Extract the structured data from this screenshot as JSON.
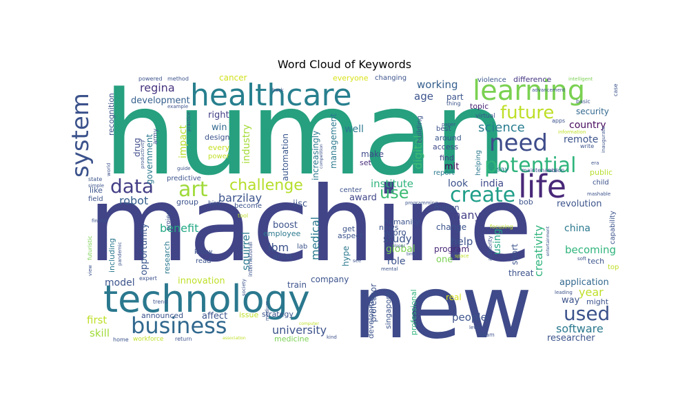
{
  "chart_data": {
    "type": "wordcloud",
    "title": "Word Cloud of Keywords",
    "background": "#ffffff",
    "colormap": "viridis",
    "words": [
      {
        "text": "human",
        "color": "#26a07f"
      },
      {
        "text": "machine",
        "color": "#414487"
      },
      {
        "text": "new",
        "color": "#3e4a89"
      },
      {
        "text": "healthcare",
        "color": "#277f8e"
      },
      {
        "text": "technology",
        "color": "#2a788e"
      },
      {
        "text": "learning",
        "color": "#7ad151"
      },
      {
        "text": "system",
        "color": "#3b528b"
      },
      {
        "text": "need",
        "color": "#3e4c8a"
      },
      {
        "text": "life",
        "color": "#482878"
      },
      {
        "text": "potential",
        "color": "#2fb47c"
      },
      {
        "text": "business",
        "color": "#31688e"
      },
      {
        "text": "create",
        "color": "#1f9e89"
      },
      {
        "text": "future",
        "color": "#bddf26"
      },
      {
        "text": "used",
        "color": "#3b528b"
      },
      {
        "text": "data",
        "color": "#433e85"
      },
      {
        "text": "art",
        "color": "#a0da39"
      },
      {
        "text": "challenge",
        "color": "#b5de2b"
      },
      {
        "text": "use",
        "color": "#3dbc74"
      },
      {
        "text": "science",
        "color": "#287c8e"
      },
      {
        "text": "robot",
        "color": "#355f8d"
      },
      {
        "text": "regina",
        "color": "#46327e"
      },
      {
        "text": "development",
        "color": "#355f8d"
      },
      {
        "text": "impact",
        "color": "#b5de2b"
      },
      {
        "text": "industry",
        "color": "#a5db36"
      },
      {
        "text": "drug",
        "color": "#3e4a89"
      },
      {
        "text": "government",
        "color": "#2a788e"
      },
      {
        "text": "right",
        "color": "#424086"
      },
      {
        "text": "win",
        "color": "#31688e"
      },
      {
        "text": "design",
        "color": "#3b528b"
      },
      {
        "text": "every",
        "color": "#c8e020"
      },
      {
        "text": "power",
        "color": "#c0df25"
      },
      {
        "text": "cancer",
        "color": "#d0e11c"
      },
      {
        "text": "working",
        "color": "#355f8d"
      },
      {
        "text": "age",
        "color": "#3b528b"
      },
      {
        "text": "part",
        "color": "#3b528b"
      },
      {
        "text": "topic",
        "color": "#482173"
      },
      {
        "text": "difference",
        "color": "#453581"
      },
      {
        "text": "violence",
        "color": "#39568c"
      },
      {
        "text": "security",
        "color": "#31688e"
      },
      {
        "text": "country",
        "color": "#46085c"
      },
      {
        "text": "remote",
        "color": "#3b528b"
      },
      {
        "text": "well",
        "color": "#2a788e"
      },
      {
        "text": "management",
        "color": "#2a788e"
      },
      {
        "text": "increasingly",
        "color": "#2a788e"
      },
      {
        "text": "automation",
        "color": "#39568c"
      },
      {
        "text": "make",
        "color": "#3e4989"
      },
      {
        "text": "set",
        "color": "#472d7b"
      },
      {
        "text": "digital",
        "color": "#3dbc74"
      },
      {
        "text": "mit",
        "color": "#440154"
      },
      {
        "text": "find",
        "color": "#433e85"
      },
      {
        "text": "access",
        "color": "#3e4989"
      },
      {
        "text": "around",
        "color": "#39568c"
      },
      {
        "text": "best",
        "color": "#3b528b"
      },
      {
        "text": "helping",
        "color": "#2a788e"
      },
      {
        "text": "building",
        "color": "#3b528b"
      },
      {
        "text": "india",
        "color": "#3e4989"
      },
      {
        "text": "look",
        "color": "#3b528b"
      },
      {
        "text": "say",
        "color": "#2a788e"
      },
      {
        "text": "public",
        "color": "#b5de2b"
      },
      {
        "text": "child",
        "color": "#3b528b"
      },
      {
        "text": "revolution",
        "color": "#3b528b"
      },
      {
        "text": "capability",
        "color": "#3b528b"
      },
      {
        "text": "institute",
        "color": "#2fb47c"
      },
      {
        "text": "barzilay",
        "color": "#3b528b"
      },
      {
        "text": "award",
        "color": "#404688"
      },
      {
        "text": "iisc",
        "color": "#3b528b"
      },
      {
        "text": "squirrel",
        "color": "#2a788e"
      },
      {
        "text": "medical",
        "color": "#2a788e"
      },
      {
        "text": "ibm",
        "color": "#3b528b"
      },
      {
        "text": "study",
        "color": "#3b528b"
      },
      {
        "text": "help",
        "color": "#3b528b"
      },
      {
        "text": "many",
        "color": "#433e85"
      },
      {
        "text": "change",
        "color": "#3b528b"
      },
      {
        "text": "program",
        "color": "#482878"
      },
      {
        "text": "global",
        "color": "#7ad151"
      },
      {
        "text": "using",
        "color": "#22a884"
      },
      {
        "text": "creativity",
        "color": "#2fb47c"
      },
      {
        "text": "china",
        "color": "#2a788e"
      },
      {
        "text": "becoming",
        "color": "#2fb47c"
      },
      {
        "text": "tech",
        "color": "#3b528b"
      },
      {
        "text": "benefit",
        "color": "#22a884"
      },
      {
        "text": "opportunity",
        "color": "#39568c"
      },
      {
        "text": "including",
        "color": "#2a788e"
      },
      {
        "text": "research",
        "color": "#2a788e"
      },
      {
        "text": "employee",
        "color": "#2a788e"
      },
      {
        "text": "boost",
        "color": "#3b528b"
      },
      {
        "text": "artist",
        "color": "#3b528b"
      },
      {
        "text": "humanity",
        "color": "#3b528b"
      },
      {
        "text": "wipro",
        "color": "#3b528b"
      },
      {
        "text": "role",
        "color": "#3b528b"
      },
      {
        "text": "one",
        "color": "#7ad151"
      },
      {
        "text": "short",
        "color": "#3b528b"
      },
      {
        "text": "model",
        "color": "#3b528b"
      },
      {
        "text": "innovation",
        "color": "#bddf26"
      },
      {
        "text": "company",
        "color": "#3b528b"
      },
      {
        "text": "application",
        "color": "#31688e"
      },
      {
        "text": "year",
        "color": "#bddf26"
      },
      {
        "text": "way",
        "color": "#3b528b"
      },
      {
        "text": "might",
        "color": "#3b528b"
      },
      {
        "text": "software",
        "color": "#2a788e"
      },
      {
        "text": "researcher",
        "color": "#3b528b"
      },
      {
        "text": "first",
        "color": "#bddf26"
      },
      {
        "text": "skill",
        "color": "#a0da39"
      },
      {
        "text": "announced",
        "color": "#3b528b"
      },
      {
        "text": "affect",
        "color": "#3b528b"
      },
      {
        "text": "university",
        "color": "#3b528b"
      },
      {
        "text": "people",
        "color": "#3b528b"
      },
      {
        "text": "professor",
        "color": "#3b528b"
      },
      {
        "text": "singapore",
        "color": "#3b528b"
      },
      {
        "text": "developing",
        "color": "#3b528b"
      },
      {
        "text": "professional",
        "color": "#2fb47c"
      },
      {
        "text": "strategy",
        "color": "#3b528b"
      },
      {
        "text": "medicine",
        "color": "#7ad151"
      },
      {
        "text": "issue",
        "color": "#bddf26"
      },
      {
        "text": "train",
        "color": "#3b528b"
      },
      {
        "text": "threat",
        "color": "#3b528b"
      },
      {
        "text": "real",
        "color": "#d8e219"
      },
      {
        "text": "everyone",
        "color": "#d8e219"
      },
      {
        "text": "changing",
        "color": "#3b528b"
      },
      {
        "text": "recognition",
        "color": "#3b528b"
      },
      {
        "text": "hype",
        "color": "#2a788e"
      },
      {
        "text": "news",
        "color": "#3b528b"
      },
      {
        "text": "get",
        "color": "#3b528b"
      },
      {
        "text": "aspect",
        "color": "#3b528b"
      },
      {
        "text": "lab",
        "color": "#3b528b"
      },
      {
        "text": "know",
        "color": "#3b528b"
      },
      {
        "text": "read",
        "color": "#3b528b"
      },
      {
        "text": "center",
        "color": "#3b528b"
      },
      {
        "text": "become",
        "color": "#3b528b"
      },
      {
        "text": "group",
        "color": "#3b528b"
      },
      {
        "text": "predictive",
        "color": "#3b528b"
      },
      {
        "text": "like",
        "color": "#3b528b"
      },
      {
        "text": "field",
        "color": "#3b528b"
      },
      {
        "text": "bob",
        "color": "#3b528b"
      },
      {
        "text": "million",
        "color": "#3b528b"
      },
      {
        "text": "project",
        "color": "#3b528b"
      },
      {
        "text": "bird",
        "color": "#3b528b"
      },
      {
        "text": "tool",
        "color": "#bddf26"
      },
      {
        "text": "focusing",
        "color": "#bddf26"
      },
      {
        "text": "authority",
        "color": "#3b528b"
      },
      {
        "text": "apps",
        "color": "#3b528b"
      },
      {
        "text": "report",
        "color": "#2a788e"
      },
      {
        "text": "virtual",
        "color": "#3b528b"
      },
      {
        "text": "maintenance",
        "color": "#3b528b"
      },
      {
        "text": "vision",
        "color": "#3b528b"
      },
      {
        "text": "write",
        "color": "#3b528b"
      },
      {
        "text": "information",
        "color": "#bddf26"
      },
      {
        "text": "inaugurate",
        "color": "#3b528b"
      },
      {
        "text": "intelligent",
        "color": "#7ad151"
      },
      {
        "text": "advancement",
        "color": "#3b528b"
      },
      {
        "text": "basic",
        "color": "#3b528b"
      },
      {
        "text": "case",
        "color": "#3b528b"
      },
      {
        "text": "thing",
        "color": "#3b528b"
      },
      {
        "text": "paper",
        "color": "#3b528b"
      },
      {
        "text": "era",
        "color": "#3b528b"
      },
      {
        "text": "mashable",
        "color": "#3b528b"
      },
      {
        "text": "leading",
        "color": "#3b528b"
      },
      {
        "text": "entertainment",
        "color": "#3b528b"
      },
      {
        "text": "soft",
        "color": "#3b528b"
      },
      {
        "text": "top",
        "color": "#bddf26"
      },
      {
        "text": "team",
        "color": "#3b528b"
      },
      {
        "text": "level",
        "color": "#3b528b"
      },
      {
        "text": "kind",
        "color": "#3b528b"
      },
      {
        "text": "association",
        "color": "#bddf26"
      },
      {
        "text": "return",
        "color": "#3b528b"
      },
      {
        "text": "workforce",
        "color": "#bddf26"
      },
      {
        "text": "home",
        "color": "#3b528b"
      },
      {
        "text": "trend",
        "color": "#3b528b"
      },
      {
        "text": "expert",
        "color": "#3b528b"
      },
      {
        "text": "view",
        "color": "#3b528b"
      },
      {
        "text": "futuristic",
        "color": "#7ad151"
      },
      {
        "text": "pandemic",
        "color": "#3b528b"
      },
      {
        "text": "finalist",
        "color": "#3b528b"
      },
      {
        "text": "state",
        "color": "#3b528b"
      },
      {
        "text": "simple",
        "color": "#3b528b"
      },
      {
        "text": "world",
        "color": "#3b528b"
      },
      {
        "text": "guide",
        "color": "#3b528b"
      },
      {
        "text": "army",
        "color": "#3b528b"
      },
      {
        "text": "productivity",
        "color": "#3b528b"
      },
      {
        "text": "practice",
        "color": "#3b528b"
      },
      {
        "text": "example",
        "color": "#3b528b"
      },
      {
        "text": "method",
        "color": "#3b528b"
      },
      {
        "text": "powered",
        "color": "#3b528b"
      },
      {
        "text": "back",
        "color": "#3b528b"
      },
      {
        "text": "international",
        "color": "#3b528b"
      },
      {
        "text": "society",
        "color": "#3b528b"
      },
      {
        "text": "medium",
        "color": "#3b528b"
      },
      {
        "text": "competition",
        "color": "#3b528b"
      },
      {
        "text": "developer",
        "color": "#3b528b"
      },
      {
        "text": "programming",
        "color": "#3b528b"
      },
      {
        "text": "mental",
        "color": "#3b528b"
      },
      {
        "text": "bmw",
        "color": "#3b528b"
      },
      {
        "text": "space",
        "color": "#bddf26"
      },
      {
        "text": "see",
        "color": "#3b528b"
      },
      {
        "text": "computer",
        "color": "#bddf26"
      }
    ]
  }
}
